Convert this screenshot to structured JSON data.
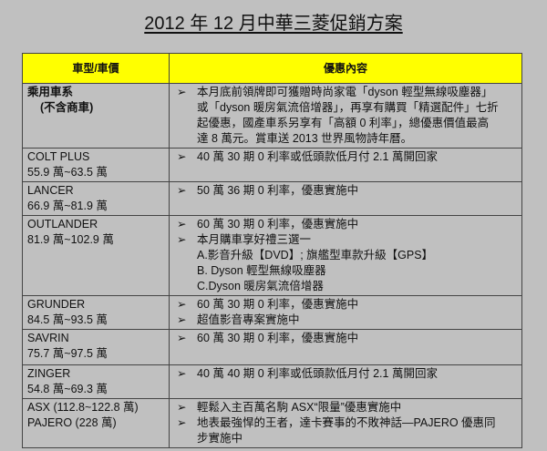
{
  "title": "2012 年 12 月中華三菱促銷方案",
  "header": {
    "col1": "車型/車價",
    "col2": "優惠內容"
  },
  "bullet_icon": "arrowhead-bullet",
  "rows": [
    {
      "name": "乘用車系",
      "price": "(不含商車)",
      "bullets": [
        "本月底前領牌即可獲贈時尚家電「dyson 輕型無線吸塵器」或「dyson 暖房氣流倍增器」，再享有購買「精選配件」七折起優惠，國產車系另享有「高額 0 利率」，總優惠價值最高達 8 萬元。賞車送 2013 世界風物詩年曆。"
      ],
      "sub": []
    },
    {
      "name": "COLT PLUS",
      "price": "55.9 萬~63.5 萬",
      "bullets": [
        "40 萬 30 期 0 利率或低頭款低月付 2.1 萬開回家"
      ],
      "sub": []
    },
    {
      "name": "LANCER",
      "price": "66.9 萬~81.9 萬",
      "bullets": [
        "50 萬 36 期 0 利率，優惠實施中"
      ],
      "sub": []
    },
    {
      "name": "OUTLANDER",
      "price": "81.9 萬~102.9 萬",
      "bullets": [
        "60 萬 30 期 0 利率，優惠實施中",
        "本月購車享好禮三選一"
      ],
      "sub": [
        "A.影音升級【DVD】; 旗艦型車款升級【GPS】",
        "B. Dyson 輕型無線吸塵器",
        "C.Dyson 暖房氣流倍增器"
      ]
    },
    {
      "name": "GRUNDER",
      "price": "84.5 萬~93.5 萬",
      "bullets": [
        "60 萬 30 期 0 利率，優惠實施中",
        "超值影音專案實施中"
      ],
      "sub": []
    },
    {
      "name": "SAVRIN",
      "price": "75.7 萬~97.5 萬",
      "bullets": [
        "60 萬 30 期 0 利率，優惠實施中"
      ],
      "sub": []
    },
    {
      "name": "ZINGER",
      "price": "54.8 萬~69.3 萬",
      "bullets": [
        "40 萬 40 期 0 利率或低頭款低月付 2.1 萬開回家"
      ],
      "sub": []
    },
    {
      "name": "ASX (112.8~122.8 萬)",
      "price": "PAJERO (228 萬)",
      "bullets": [
        "輕鬆入主百萬名駒 ASX“限量”優惠實施中",
        "地表最強悍的王者，達卡賽事的不敗神話—PAJERO 優惠同步實施中"
      ],
      "sub": []
    }
  ]
}
